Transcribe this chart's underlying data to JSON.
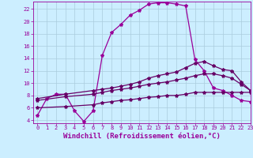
{
  "xlabel": "Windchill (Refroidissement éolien,°C)",
  "bg_color": "#cceeff",
  "grid_color": "#aaccdd",
  "line_color": "#990099",
  "line_color2": "#660066",
  "xlim": [
    -0.5,
    23
  ],
  "ylim": [
    3.5,
    23.2
  ],
  "xticks": [
    0,
    1,
    2,
    3,
    4,
    5,
    6,
    7,
    8,
    9,
    10,
    11,
    12,
    13,
    14,
    15,
    16,
    17,
    18,
    19,
    20,
    21,
    22,
    23
  ],
  "yticks": [
    4,
    6,
    8,
    10,
    12,
    14,
    16,
    18,
    20,
    22
  ],
  "curve1_x": [
    0,
    1,
    2,
    3,
    4,
    5,
    6,
    7,
    8,
    9,
    10,
    11,
    12,
    13,
    14,
    15,
    16,
    17,
    18,
    19,
    20,
    21,
    22,
    23
  ],
  "curve1_y": [
    4.8,
    7.5,
    8.2,
    8.2,
    5.5,
    3.8,
    5.5,
    14.5,
    18.2,
    19.5,
    21.0,
    21.8,
    22.8,
    23.0,
    23.0,
    22.8,
    22.5,
    13.8,
    12.0,
    9.2,
    8.8,
    8.0,
    7.2,
    7.0
  ],
  "curve2_x": [
    0,
    3,
    6,
    7,
    8,
    9,
    10,
    11,
    12,
    13,
    14,
    15,
    16,
    17,
    18,
    19,
    20,
    21,
    22,
    23
  ],
  "curve2_y": [
    7.5,
    8.2,
    8.8,
    9.0,
    9.2,
    9.5,
    9.8,
    10.2,
    10.8,
    11.2,
    11.5,
    11.8,
    12.5,
    13.2,
    13.5,
    12.8,
    12.2,
    12.0,
    10.2,
    8.8
  ],
  "curve3_x": [
    0,
    3,
    6,
    7,
    8,
    9,
    10,
    11,
    12,
    13,
    14,
    15,
    16,
    17,
    18,
    19,
    20,
    21,
    22,
    23
  ],
  "curve3_y": [
    7.2,
    7.8,
    8.2,
    8.5,
    8.8,
    9.0,
    9.2,
    9.5,
    9.8,
    10.0,
    10.2,
    10.5,
    10.8,
    11.2,
    11.5,
    11.5,
    11.2,
    10.8,
    9.8,
    8.8
  ],
  "curve4_x": [
    0,
    3,
    6,
    7,
    8,
    9,
    10,
    11,
    12,
    13,
    14,
    15,
    16,
    17,
    18,
    19,
    20,
    21,
    22,
    23
  ],
  "curve4_y": [
    6.0,
    6.2,
    6.5,
    6.8,
    7.0,
    7.2,
    7.3,
    7.5,
    7.7,
    7.8,
    8.0,
    8.0,
    8.2,
    8.5,
    8.5,
    8.5,
    8.5,
    8.5,
    8.5,
    8.5
  ],
  "marker": "*",
  "markersize": 3,
  "linewidth": 0.9,
  "tick_fontsize": 5,
  "xlabel_fontsize": 6.5,
  "font_family": "monospace"
}
